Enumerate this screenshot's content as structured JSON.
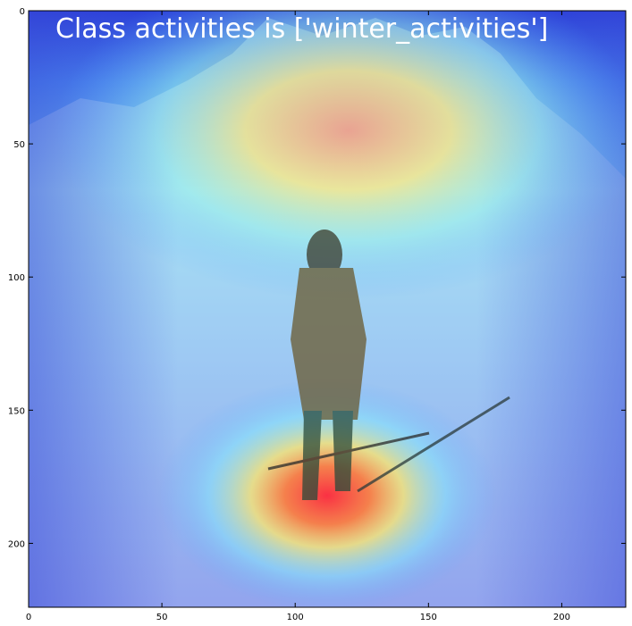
{
  "chart_data": {
    "type": "heatmap",
    "title": "Class activities is ['winter_activities']",
    "title_color": "#ffffff",
    "image_description_colors": {
      "cold": "#1a2fd6",
      "cool": "#5aa8ff",
      "mid": "#60f0ff",
      "warm": "#f5f57a",
      "hot": "#ff4a4a"
    },
    "xlim": [
      0,
      224
    ],
    "ylim": [
      224,
      0
    ],
    "xticks": [
      0,
      50,
      100,
      150,
      200
    ],
    "yticks": [
      0,
      50,
      100,
      150,
      200
    ],
    "xtick_labels": [
      "0",
      "50",
      "100",
      "150",
      "200"
    ],
    "ytick_labels": [
      "0",
      "50",
      "100",
      "150",
      "200"
    ],
    "hotspots": [
      {
        "x": 112,
        "y": 182,
        "level": 1.0
      },
      {
        "x": 120,
        "y": 45,
        "level": 0.75
      }
    ],
    "grid": false,
    "xlabel": "",
    "ylabel": ""
  }
}
